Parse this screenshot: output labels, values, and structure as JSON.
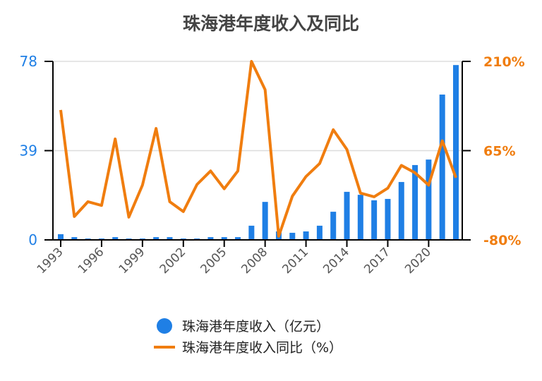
{
  "chart_data": {
    "type": "bar+line",
    "title": "珠海港年度收入及同比",
    "categories": [
      "1993",
      "1994",
      "1995",
      "1996",
      "1997",
      "1998",
      "1999",
      "2000",
      "2001",
      "2002",
      "2003",
      "2004",
      "2005",
      "2006",
      "2007",
      "2008",
      "2009",
      "2010",
      "2011",
      "2012",
      "2013",
      "2014",
      "2015",
      "2016",
      "2017",
      "2018",
      "2019",
      "2020",
      "2021",
      "2022"
    ],
    "x_tick_labels": [
      "1993",
      "1996",
      "1999",
      "2002",
      "2005",
      "2008",
      "2011",
      "2014",
      "2017",
      "2020"
    ],
    "series": [
      {
        "name": "珠海港年度收入（亿元）",
        "type": "bar",
        "axis": "left",
        "color": "#1f7fe5",
        "values": [
          2.5,
          1.2,
          0.6,
          0.6,
          1.2,
          0.6,
          0.6,
          1.2,
          1.2,
          0.6,
          0.6,
          1.2,
          1.2,
          1.2,
          6.2,
          16.6,
          3.7,
          3.1,
          3.7,
          6.2,
          12.3,
          21,
          19.7,
          17.3,
          17.9,
          25.3,
          32.7,
          35.1,
          63.5,
          76.4
        ]
      },
      {
        "name": "珠海港年度收入同比（%）",
        "type": "line",
        "axis": "right",
        "color": "#f07d0f",
        "values": [
          131,
          -42,
          -18,
          -24,
          84,
          -43,
          9,
          101,
          -18,
          -34,
          10,
          32,
          3,
          32,
          210,
          164,
          -74,
          -9,
          23,
          44,
          99,
          67,
          -4,
          -10,
          4,
          41,
          29,
          9,
          81,
          21
        ]
      }
    ],
    "left_axis": {
      "ylim": [
        0,
        78
      ],
      "ticks": [
        "0",
        "39",
        "78"
      ],
      "color": "#1f7fe5"
    },
    "right_axis": {
      "ylim": [
        -80,
        210
      ],
      "ticks": [
        "-80%",
        "65%",
        "210%"
      ],
      "color": "#f07d0f"
    },
    "grid": true,
    "legend": "bottom"
  }
}
